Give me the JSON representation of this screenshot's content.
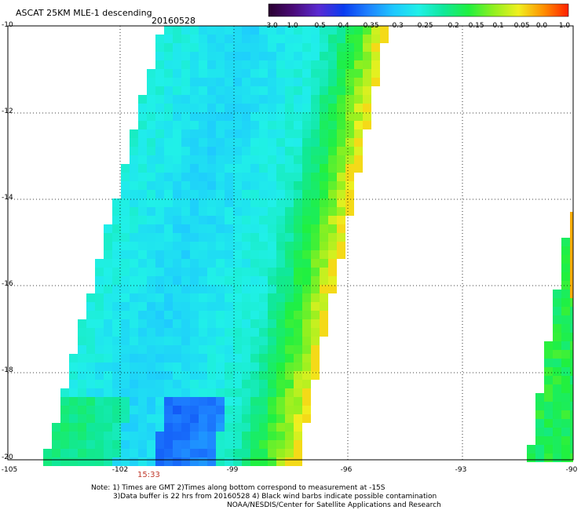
{
  "header": {
    "title": "ASCAT 25KM MLE-1 descending",
    "date": "20160528"
  },
  "colorbar": {
    "labels": [
      "-3.0",
      "-1.0",
      "-0.5",
      "-0.4",
      "-0.35",
      "-0.3",
      "-0.25",
      "-0.2",
      "-0.15",
      "-0.1",
      "-0.05",
      "0.0",
      "1.0"
    ],
    "colors": [
      "#2a0030",
      "#4a0a78",
      "#5a2ad2",
      "#0a3cf0",
      "#1e82ff",
      "#1ec8ff",
      "#20f0e8",
      "#10e89a",
      "#20f040",
      "#90f020",
      "#f0f020",
      "#ff9000",
      "#ff2000"
    ]
  },
  "map": {
    "lat_labels": [
      "-10",
      "-12",
      "-14",
      "-16",
      "-18",
      "-20"
    ],
    "lon_labels": [
      "-105",
      "-102",
      "-99",
      "-96",
      "-93",
      "-90"
    ],
    "time_label": "15:33"
  },
  "footer": {
    "note1": "Note: 1) Times are GMT 2)Times along bottom correspond to measurement at -15S",
    "note2": "3)Data buffer is 22 hrs from 20160528 4) Black wind barbs indicate possible contamination",
    "note3": "NOAA/NESDIS/Center for Satellite Applications and Research"
  }
}
